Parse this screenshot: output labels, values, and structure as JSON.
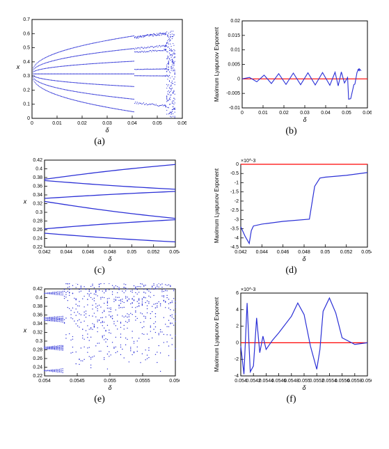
{
  "colors": {
    "series": "#2a2fd6",
    "zero": "#ff0000",
    "axis": "#000000",
    "bg": "#ffffff"
  },
  "panels": {
    "a": {
      "type": "scatter",
      "xlabel": "δ",
      "ylabel": "x",
      "label_fontsize": 9,
      "xlim": [
        0,
        0.06
      ],
      "ylim": [
        0,
        0.7
      ],
      "xticks": [
        0,
        0.01,
        0.02,
        0.03,
        0.04,
        0.05,
        0.06
      ],
      "yticks": [
        0,
        0.1,
        0.2,
        0.3,
        0.4,
        0.5,
        0.6,
        0.7
      ],
      "tick_fontsize": 7
    },
    "b": {
      "type": "line",
      "xlabel": "δ",
      "ylabel": "Maximum Lyapunov Exponent",
      "label_fontsize": 8,
      "xlim": [
        0,
        0.06
      ],
      "ylim": [
        -0.01,
        0.02
      ],
      "xticks": [
        0,
        0.01,
        0.02,
        0.03,
        0.04,
        0.05,
        0.06
      ],
      "yticks": [
        -0.01,
        -0.005,
        0,
        0.005,
        0.01,
        0.015,
        0.02
      ],
      "tick_fontsize": 7,
      "zero_line": 0,
      "y": [
        0,
        0.0005,
        -0.001,
        0.0013,
        -0.0016,
        0.0018,
        -0.0019,
        0.002,
        -0.002,
        0.0021,
        -0.0021,
        0.0022,
        -0.0022,
        0.0023,
        -0.0024,
        0.0024,
        -0.0014,
        0.0005,
        -0.007,
        -0.0068,
        -0.002,
        -0.0018,
        0.0022,
        0.003,
        0.0035,
        0.0028
      ],
      "x": [
        0,
        0.0035,
        0.007,
        0.0105,
        0.014,
        0.0175,
        0.021,
        0.0245,
        0.028,
        0.0315,
        0.035,
        0.0385,
        0.042,
        0.0445,
        0.046,
        0.0475,
        0.049,
        0.0505,
        0.051,
        0.052,
        0.0535,
        0.054,
        0.055,
        0.0555,
        0.056,
        0.057
      ]
    },
    "c": {
      "type": "line",
      "xlabel": "δ",
      "ylabel": "x",
      "label_fontsize": 9,
      "xlim": [
        0.042,
        0.054
      ],
      "ylim": [
        0.22,
        0.42
      ],
      "xticks": [
        0.042,
        0.044,
        0.046,
        0.048,
        0.05,
        0.052,
        0.054
      ],
      "yticks": [
        0.22,
        0.24,
        0.26,
        0.28,
        0.3,
        0.32,
        0.34,
        0.36,
        0.38,
        0.4,
        0.42
      ],
      "tick_fontsize": 7,
      "branches": [
        {
          "x": [
            0.042,
            0.054
          ],
          "y": [
            0.376,
            0.41
          ]
        },
        {
          "x": [
            0.042,
            0.054
          ],
          "y": [
            0.373,
            0.353
          ]
        },
        {
          "x": [
            0.042,
            0.054
          ],
          "y": [
            0.332,
            0.348
          ]
        },
        {
          "x": [
            0.042,
            0.054
          ],
          "y": [
            0.325,
            0.286
          ]
        },
        {
          "x": [
            0.042,
            0.054
          ],
          "y": [
            0.262,
            0.283
          ]
        },
        {
          "x": [
            0.042,
            0.054
          ],
          "y": [
            0.252,
            0.232
          ]
        }
      ]
    },
    "d": {
      "type": "line",
      "xlabel": "δ",
      "ylabel": "Maximum Lyapunov Exponent",
      "label_fontsize": 8,
      "xlim": [
        0.042,
        0.054
      ],
      "ylim": [
        -4.5,
        0
      ],
      "xticks": [
        0.042,
        0.044,
        0.046,
        0.048,
        0.05,
        0.052,
        0.054
      ],
      "yticks": [
        -4.5,
        -4,
        -3.5,
        -3,
        -2.5,
        -2,
        -1.5,
        -1,
        -0.5,
        0
      ],
      "tick_fontsize": 7,
      "y_scale_exponent": "×10^-3",
      "zero_line": 0,
      "x": [
        0.042,
        0.0424,
        0.0428,
        0.043,
        0.0432,
        0.044,
        0.046,
        0.0485,
        0.049,
        0.0495,
        0.05,
        0.052,
        0.054
      ],
      "y": [
        -3.4,
        -3.9,
        -4.3,
        -3.6,
        -3.35,
        -3.25,
        -3.1,
        -2.98,
        -1.2,
        -0.75,
        -0.7,
        -0.6,
        -0.45
      ]
    },
    "e": {
      "type": "scatter",
      "xlabel": "δ",
      "ylabel": "x",
      "label_fontsize": 9,
      "xlim": [
        0.054,
        0.056
      ],
      "ylim": [
        0.22,
        0.42
      ],
      "xticks": [
        0.054,
        0.0545,
        0.055,
        0.0555,
        0.056
      ],
      "yticks": [
        0.22,
        0.24,
        0.26,
        0.28,
        0.3,
        0.32,
        0.34,
        0.36,
        0.38,
        0.4,
        0.42
      ],
      "tick_fontsize": 7,
      "branches_start": [
        0.41,
        0.353,
        0.348,
        0.286,
        0.283,
        0.232
      ]
    },
    "f": {
      "type": "line",
      "xlabel": "δ",
      "ylabel": "Maximum Lyapunov Exponent",
      "label_fontsize": 8,
      "xlim": [
        0.054,
        0.056
      ],
      "ylim": [
        -4,
        6
      ],
      "xticks": [
        0.054,
        0.0542,
        0.0544,
        0.0546,
        0.0548,
        0.055,
        0.0552,
        0.0554,
        0.0556,
        0.0558,
        0.056
      ],
      "yticks": [
        -4,
        -2,
        0,
        2,
        4,
        6
      ],
      "tick_fontsize": 7,
      "y_scale_exponent": "×10^-3",
      "zero_line": 0,
      "x": [
        0.054,
        0.05405,
        0.0541,
        0.05415,
        0.0542,
        0.05425,
        0.0543,
        0.05435,
        0.0544,
        0.0545,
        0.0546,
        0.0548,
        0.0549,
        0.055,
        0.0551,
        0.0552,
        0.05525,
        0.0553,
        0.0554,
        0.0555,
        0.0556,
        0.0558,
        0.056
      ],
      "y": [
        -0.4,
        -3.8,
        4.8,
        -3.5,
        -2.8,
        3.0,
        -1.2,
        0.8,
        -0.8,
        0.3,
        1.2,
        3.2,
        4.8,
        3.4,
        -0.4,
        -3.2,
        -0.8,
        3.8,
        5.4,
        3.6,
        0.6,
        -0.2,
        0.0
      ]
    }
  },
  "captions": {
    "a": "(a)",
    "b": "(b)",
    "c": "(c)",
    "d": "(d)",
    "e": "(e)",
    "f": "(f)"
  }
}
